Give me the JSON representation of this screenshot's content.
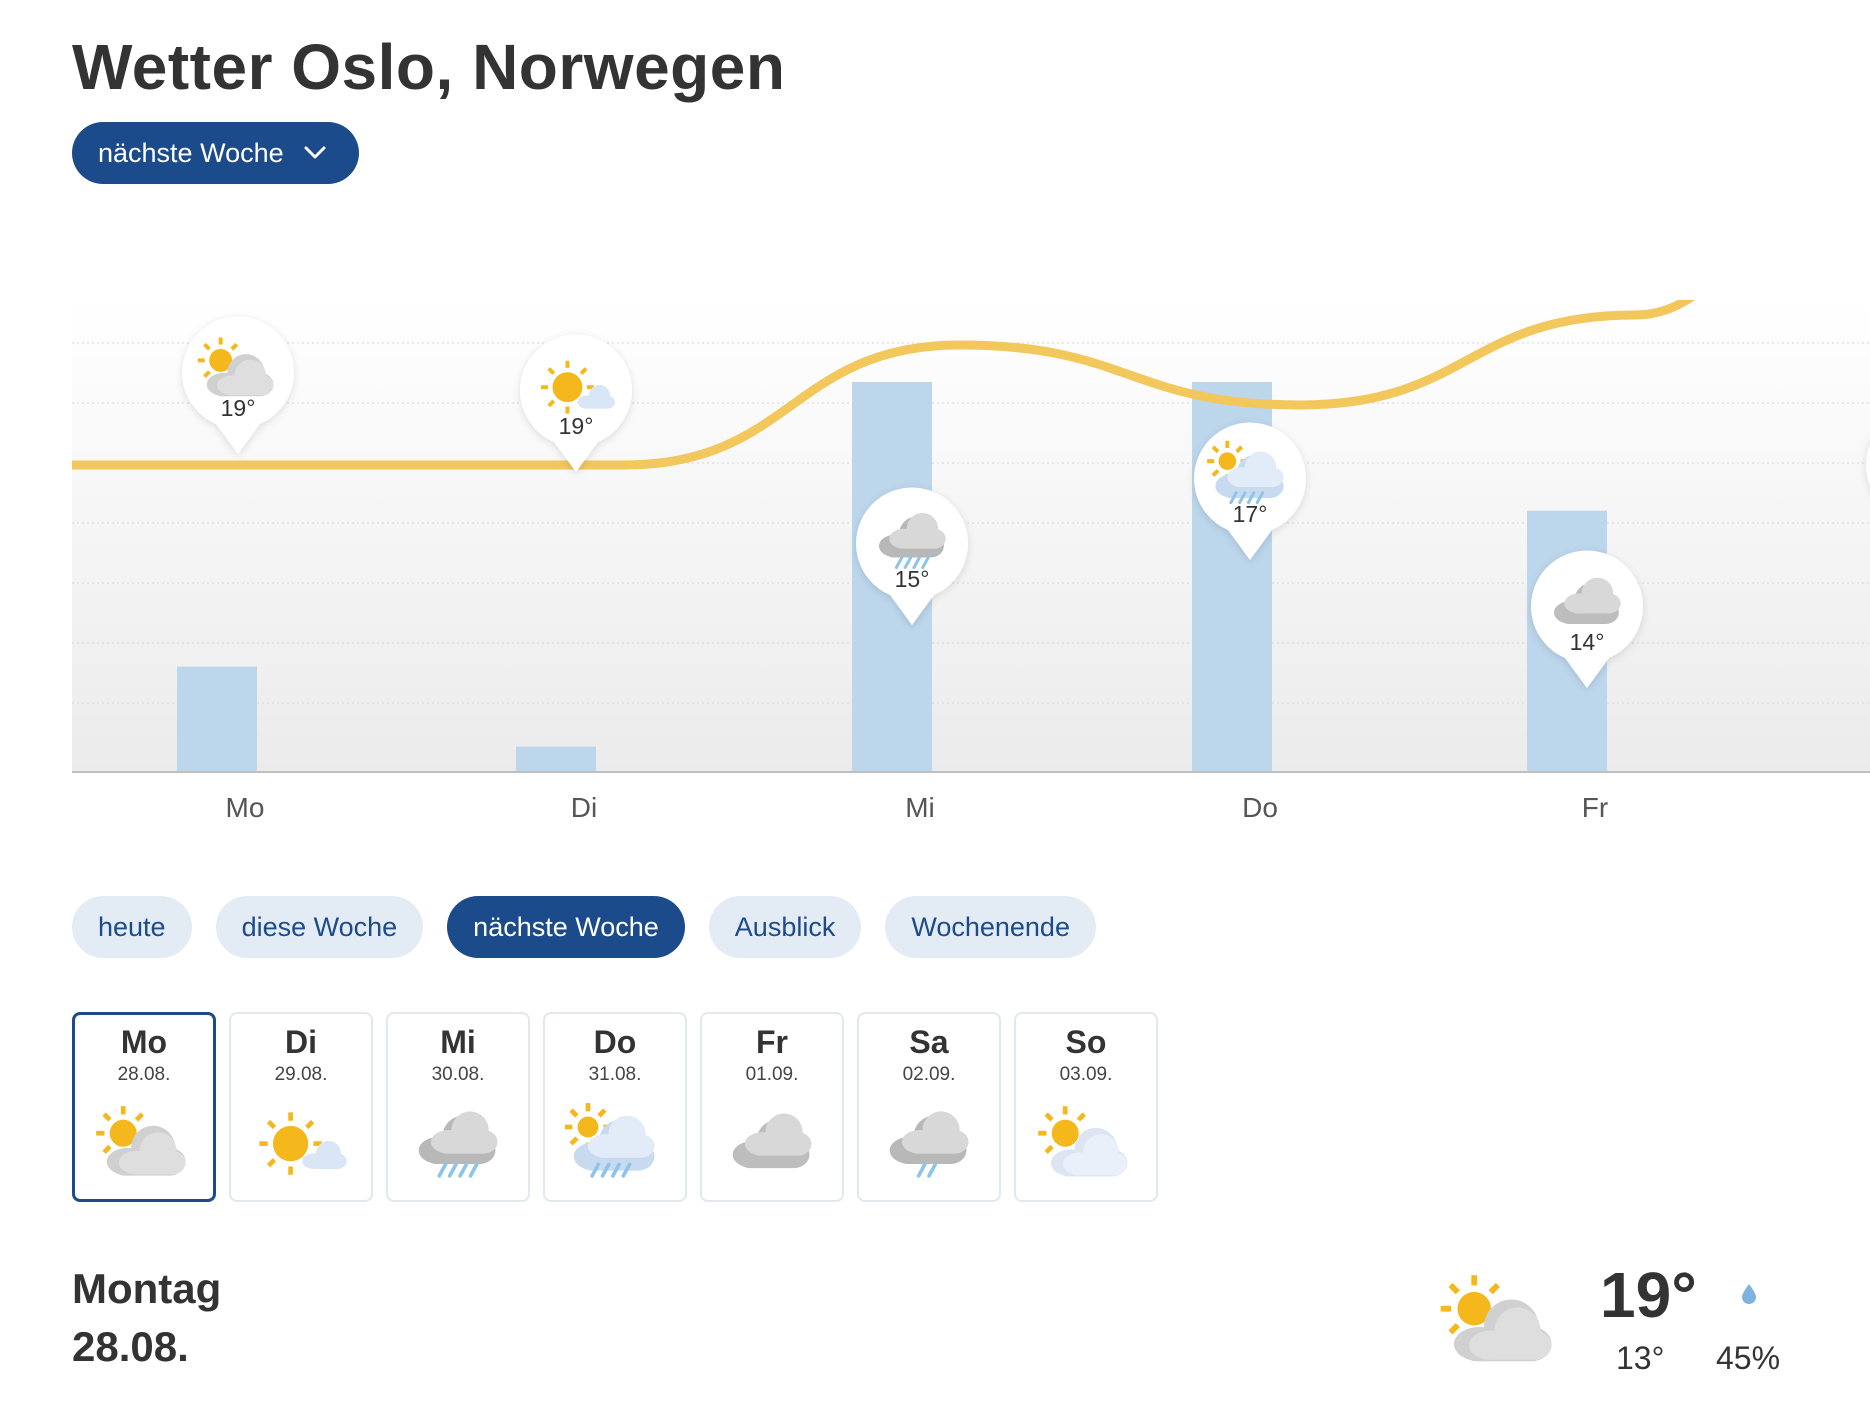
{
  "header": {
    "title": "Wetter Oslo, Norwegen"
  },
  "dropdown": {
    "label": "nächste Woche",
    "icon": "chevron-down-icon"
  },
  "colors": {
    "accent": "#1c4b8c",
    "tab_bg": "#e3ecf5",
    "temp_line": "#f2c75c",
    "temp_line_hot": "#f0a058",
    "precip_bar": "#bcd6ec",
    "sun": "#f5b81c",
    "cloud": "#d8d8d8",
    "rain": "#8ec3ea"
  },
  "chart_data": {
    "type": "line",
    "categories": [
      "Mo",
      "Di",
      "Mi",
      "Do",
      "Fr"
    ],
    "series": [
      {
        "values": [
          19,
          19,
          15,
          17,
          14
        ],
        "unit": "°"
      }
    ],
    "precipitation_bars": [
      0.27,
      0.065,
      1.0,
      1.0,
      0.67
    ],
    "temperature_labels": [
      "19°",
      "19°",
      "15°",
      "17°",
      "14°"
    ],
    "icons": [
      "partly-cloudy-icon",
      "sunny-icon",
      "rain-cloud-icon",
      "sun-rain-icon",
      "cloud-icon"
    ],
    "grid": true,
    "partial_next_day_visible": true
  },
  "tabs": [
    {
      "label": "heute",
      "active": false
    },
    {
      "label": "diese Woche",
      "active": false
    },
    {
      "label": "nächste Woche",
      "active": true
    },
    {
      "label": "Ausblick",
      "active": false
    },
    {
      "label": "Wochenende",
      "active": false
    }
  ],
  "days": [
    {
      "name": "Mo",
      "date": "28.08.",
      "icon": "partly-cloudy-icon",
      "active": true
    },
    {
      "name": "Di",
      "date": "29.08.",
      "icon": "sunny-icon",
      "active": false
    },
    {
      "name": "Mi",
      "date": "30.08.",
      "icon": "rain-cloud-icon",
      "active": false
    },
    {
      "name": "Do",
      "date": "31.08.",
      "icon": "sun-rain-icon",
      "active": false
    },
    {
      "name": "Fr",
      "date": "01.09.",
      "icon": "cloud-icon",
      "active": false
    },
    {
      "name": "Sa",
      "date": "02.09.",
      "icon": "light-rain-icon",
      "active": false
    },
    {
      "name": "So",
      "date": "03.09.",
      "icon": "partly-cloudy-light-icon",
      "active": false
    }
  ],
  "detail": {
    "day": "Montag",
    "date": "28.08.",
    "icon": "partly-cloudy-icon",
    "high": "19°",
    "low": "13°",
    "precip_icon": "raindrop-icon",
    "precip": "45%"
  }
}
